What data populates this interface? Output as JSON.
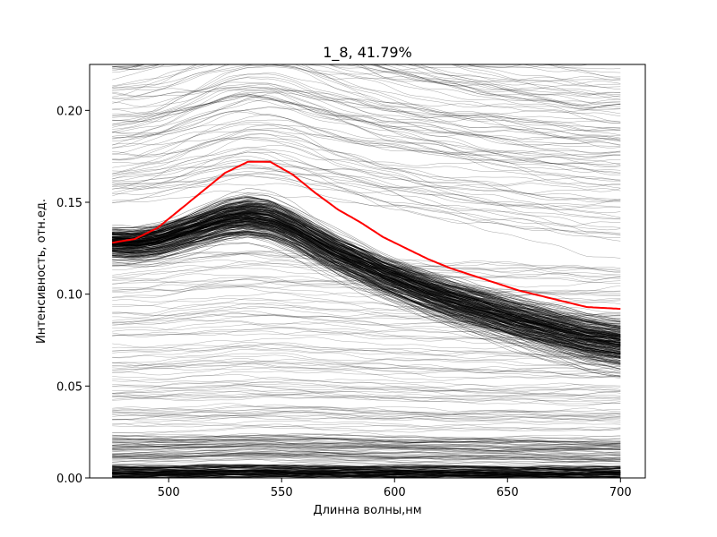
{
  "chart_data": {
    "type": "line",
    "title": "1_8, 41.79%",
    "xlabel": "Длинна волны,нм",
    "ylabel": "Интенсивность, отн.ед.",
    "xlim": [
      465,
      711
    ],
    "ylim": [
      0,
      0.225
    ],
    "x_ticks": [
      500,
      550,
      600,
      650,
      700
    ],
    "x_tick_labels": [
      "500",
      "550",
      "600",
      "650",
      "700"
    ],
    "y_ticks": [
      0.0,
      0.05,
      0.1,
      0.15,
      0.2
    ],
    "y_tick_labels": [
      "0.00",
      "0.05",
      "0.10",
      "0.15",
      "0.20"
    ],
    "grid": false,
    "legend": "none",
    "colors": {
      "mean_line": "#ff0000",
      "spectra": "#000000"
    },
    "series": [
      {
        "role": "mean",
        "x": [
          475,
          485,
          495,
          505,
          515,
          525,
          535,
          545,
          555,
          565,
          575,
          585,
          595,
          605,
          615,
          625,
          635,
          645,
          655,
          665,
          675,
          685,
          700
        ],
        "y": [
          0.128,
          0.13,
          0.136,
          0.146,
          0.156,
          0.166,
          0.172,
          0.172,
          0.165,
          0.155,
          0.146,
          0.139,
          0.131,
          0.125,
          0.119,
          0.114,
          0.11,
          0.106,
          0.102,
          0.099,
          0.096,
          0.093,
          0.092
        ]
      }
    ],
    "spectra_bundle": {
      "x_range": [
        475,
        700
      ],
      "description_levels": [
        0.003,
        0.01,
        0.02,
        0.04,
        0.06,
        0.08,
        0.1,
        0.12,
        0.14,
        0.16,
        0.18,
        0.2,
        0.22
      ]
    }
  }
}
